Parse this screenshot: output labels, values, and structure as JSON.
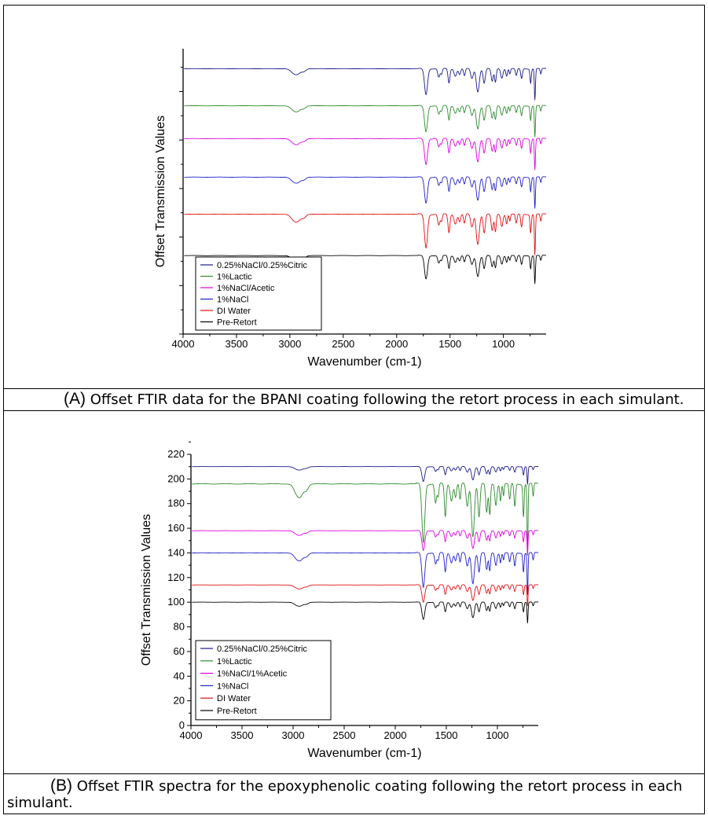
{
  "panels": [
    {
      "caption": {
        "letter": "(A)",
        "text": " Offset FTIR data for the BPANI coating following the retort process in each simulant."
      },
      "chart_data": {
        "type": "line",
        "title": "",
        "xlabel": "Wavenumber (cm-1)",
        "ylabel": "Offset Transmission Values",
        "xlim": [
          4000,
          600
        ],
        "x_reversed": true,
        "x_ticks": [
          "4000",
          "3500",
          "3000",
          "2500",
          "2000",
          "1500",
          "1000"
        ],
        "y_tick_labels_shown": false,
        "ylim": [
          0,
          100
        ],
        "legend_position": "lower-left",
        "legend": [
          "0.25%NaCl/0.25%Citric",
          "1%Lactic",
          "1%NaCl/Acetic",
          "1%NaCl",
          "DI Water",
          "Pre-Retort"
        ],
        "series": [
          {
            "name": "0.25%NaCl/0.25%Citric",
            "color": "#1a1a8c",
            "baseline": 93,
            "scale": 1.0
          },
          {
            "name": "1%Lactic",
            "color": "#2e8b2e",
            "baseline": 80,
            "scale": 1.0
          },
          {
            "name": "1%NaCl/Acetic",
            "color": "#e000e0",
            "baseline": 68.5,
            "scale": 1.0
          },
          {
            "name": "1%NaCl",
            "color": "#2020c8",
            "baseline": 55,
            "scale": 1.0
          },
          {
            "name": "DI Water",
            "color": "#e01010",
            "baseline": 42,
            "scale": 1.3
          },
          {
            "name": "Pre-Retort",
            "color": "#000000",
            "baseline": 27.5,
            "scale": 0.9
          }
        ]
      }
    },
    {
      "caption": {
        "letter": "(B)",
        "text": " Offset FTIR spectra for the epoxyphenolic coating following the retort process in each simulant."
      },
      "chart_data": {
        "type": "line",
        "title": "",
        "xlabel": "Wavenumber (cm-1)",
        "ylabel": "Offset Transmission Values",
        "xlim": [
          4000,
          600
        ],
        "x_reversed": true,
        "x_ticks": [
          "4000",
          "3500",
          "3000",
          "2500",
          "2000",
          "1500",
          "1000"
        ],
        "ylim": [
          0,
          220
        ],
        "y_ticks": [
          "0",
          "20",
          "40",
          "60",
          "80",
          "100",
          "120",
          "140",
          "160",
          "180",
          "200",
          "220"
        ],
        "legend_position": "lower-left",
        "legend": [
          "0.25%NaCl/0.25%Citric",
          "1%Lactic",
          "1%NaCl/1%Acetic",
          "1%NaCl",
          "DI Water",
          "Pre-Retort"
        ],
        "series": [
          {
            "name": "0.25%NaCl/0.25%Citric",
            "color": "#1a1a8c",
            "baseline": 210,
            "scale": 0.6
          },
          {
            "name": "1%Lactic",
            "color": "#2e8b2e",
            "baseline": 196,
            "scale": 2.4
          },
          {
            "name": "1%NaCl/1%Acetic",
            "color": "#e000e0",
            "baseline": 158,
            "scale": 0.8
          },
          {
            "name": "1%NaCl",
            "color": "#2020c8",
            "baseline": 140,
            "scale": 1.4
          },
          {
            "name": "DI Water",
            "color": "#e01010",
            "baseline": 114,
            "scale": 0.7
          },
          {
            "name": "Pre-Retort",
            "color": "#000000",
            "baseline": 100,
            "scale": 0.7
          }
        ]
      }
    }
  ]
}
